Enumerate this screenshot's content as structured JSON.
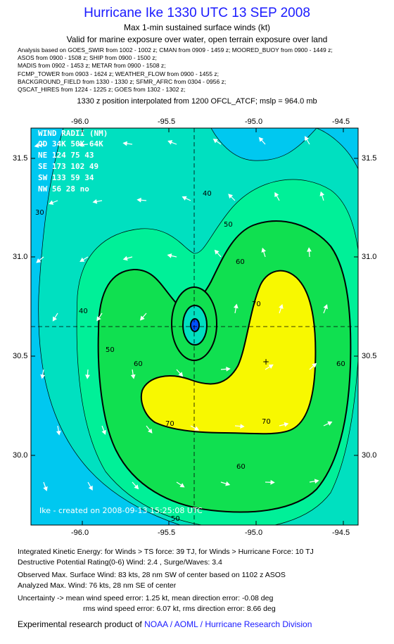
{
  "header": {
    "title": "Hurricane Ike 1330 UTC 13 SEP 2008",
    "subtitle1": "Max 1-min sustained surface winds (kt)",
    "subtitle2": "Valid for marine exposure over water, open terrain exposure over land",
    "sources": [
      "Analysis based on  GOES_SWIR from 1002 - 1002 z;  CMAN from 0909 - 1459 z;  MOORED_BUOY from 0900 - 1449 z;",
      "ASOS from 0900 - 1508 z;  SHIP from 0900 - 1500 z;",
      "MADIS from 0902 - 1453 z;  METAR from 0900 - 1508 z;",
      "FCMP_TOWER from 0903 - 1624 z;  WEATHER_FLOW from 0900 - 1455 z;",
      "BACKGROUND_FIELD from 1330 - 1330 z;  SFMR_AFRC from 0304 - 0956 z;",
      "QSCAT_HIRES from 1224 - 1225 z;  GOES from 1302 - 1302 z;"
    ],
    "interp_note": "1330 z position interpolated from 1200 OFCL_ATCF; mslp = 964.0 mb"
  },
  "map": {
    "lon_ticks": [
      "-96.0",
      "-95.5",
      "-95.0",
      "-94.5"
    ],
    "lat_ticks": [
      "31.5",
      "31.0",
      "30.5",
      "30.0"
    ],
    "lon_range": [
      -96.25,
      -94.35
    ],
    "lat_range": [
      29.65,
      31.68
    ],
    "center": {
      "lon": -95.3,
      "lat": 30.65
    },
    "max_wind_marker": {
      "lon": -94.85,
      "lat": 30.48
    },
    "contour_labels": [
      "40",
      "50",
      "60",
      "70",
      "30",
      "40",
      "50",
      "60",
      "70",
      "60",
      "70",
      "60",
      "50"
    ],
    "wind_radii": {
      "title": "WIND RADII (NM)",
      "header": "QD 34K 50K 64K",
      "rows": [
        "NE 124  75  43",
        "SE 173 102  49",
        "SW 133  59  34",
        "NW  56  28  no"
      ]
    },
    "credit": "Ike - created on 2008-09-13 15:25:08 UTC",
    "colors": {
      "w20": "#00c8f0",
      "w30": "#00e0c0",
      "w40": "#00f098",
      "w50": "#10e050",
      "w60": "#b8f020",
      "w70": "#f8f800",
      "w80": "#ffb400",
      "w90": "#ff6400",
      "eye": "#0050ff",
      "land": "#e8e8e8"
    }
  },
  "stats": {
    "ike": "Integrated Kinetic Energy:  for Winds > TS force: 39 TJ,  for Winds > Hurricane Force: 10 TJ",
    "dpr": "Destructive Potential Rating(0-6)   Wind: 2.4 , Surge/Waves: 3.4",
    "obs_max": "Observed Max. Surface Wind: 83 kts, 28 nm SW of center based on 1102 z ASOS",
    "ana_max": "Analyzed Max. Wind: 76 kts, 28 nm SE of center",
    "unc1": "Uncertainty -> mean wind speed error: 1.25 kt,   mean direction error:  -0.08 deg",
    "unc2": "rms wind speed error: 6.07 kt,   rms direction error: 8.66 deg"
  },
  "footer": {
    "prefix": "Experimental research product of ",
    "org": "NOAA / AOML / Hurricane Research Division"
  }
}
